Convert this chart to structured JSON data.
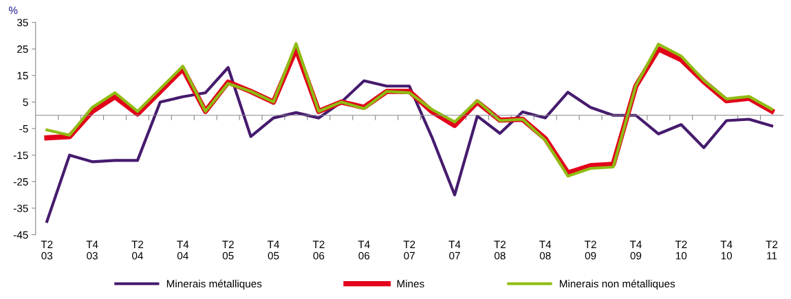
{
  "chart_data": {
    "type": "line",
    "ylabel": "%",
    "categories": [
      "T2\n03",
      null,
      "T4\n03",
      null,
      "T2\n04",
      null,
      "T4\n04",
      null,
      "T2\n05",
      null,
      "T4\n05",
      null,
      "T2\n06",
      null,
      "T4\n06",
      null,
      "T2\n07",
      null,
      "T4\n07",
      null,
      "T2\n08",
      null,
      "T4\n08",
      null,
      "T2\n09",
      null,
      "T4\n09",
      null,
      "T2\n10",
      null,
      "T4\n10",
      null,
      "T2\n11"
    ],
    "series": [
      {
        "name": "Minerais métalliques",
        "color": "#461b6e",
        "values": [
          -40,
          -15,
          -17.5,
          -17,
          -17,
          5,
          7,
          8.5,
          18,
          -8,
          -1,
          1,
          -1,
          5,
          13,
          11,
          11,
          -8.3,
          -30,
          -0.3,
          -6.8,
          1.3,
          -1,
          8.7,
          3,
          0,
          0,
          -7,
          -3.5,
          -12.2,
          -2,
          -1.5,
          -4
        ]
      },
      {
        "name": "Mines",
        "color": "#e2001a",
        "values": [
          -8.5,
          -8,
          1.5,
          7,
          0.5,
          9,
          17.5,
          1.5,
          12.5,
          9,
          5,
          25,
          1.5,
          5,
          3,
          9,
          9,
          1.4,
          -3.8,
          5,
          -1.8,
          -1.5,
          -8.8,
          -21.7,
          -19,
          -18.5,
          11,
          25,
          21,
          12.7,
          5.5,
          6.4,
          1.6
        ]
      },
      {
        "name": "Minerais non métalliques",
        "color": "#8fbc11",
        "values": [
          -5.5,
          -7.5,
          3,
          8.5,
          1.5,
          10,
          18.5,
          1.5,
          12,
          9,
          5,
          27,
          1.5,
          5,
          2.5,
          9,
          8.5,
          2.2,
          -2.5,
          5.5,
          -2,
          -1.5,
          -9.4,
          -22.9,
          -20,
          -19.5,
          11.2,
          26.8,
          22.3,
          13.2,
          6.2,
          7.1,
          2.3
        ]
      }
    ],
    "ylim": [
      -45,
      35
    ],
    "yticks": [
      -45,
      -35,
      -25,
      -15,
      -5,
      5,
      15,
      25,
      35
    ],
    "grid": false,
    "legend": "bottom",
    "marker": "none",
    "line_style": "solid"
  }
}
